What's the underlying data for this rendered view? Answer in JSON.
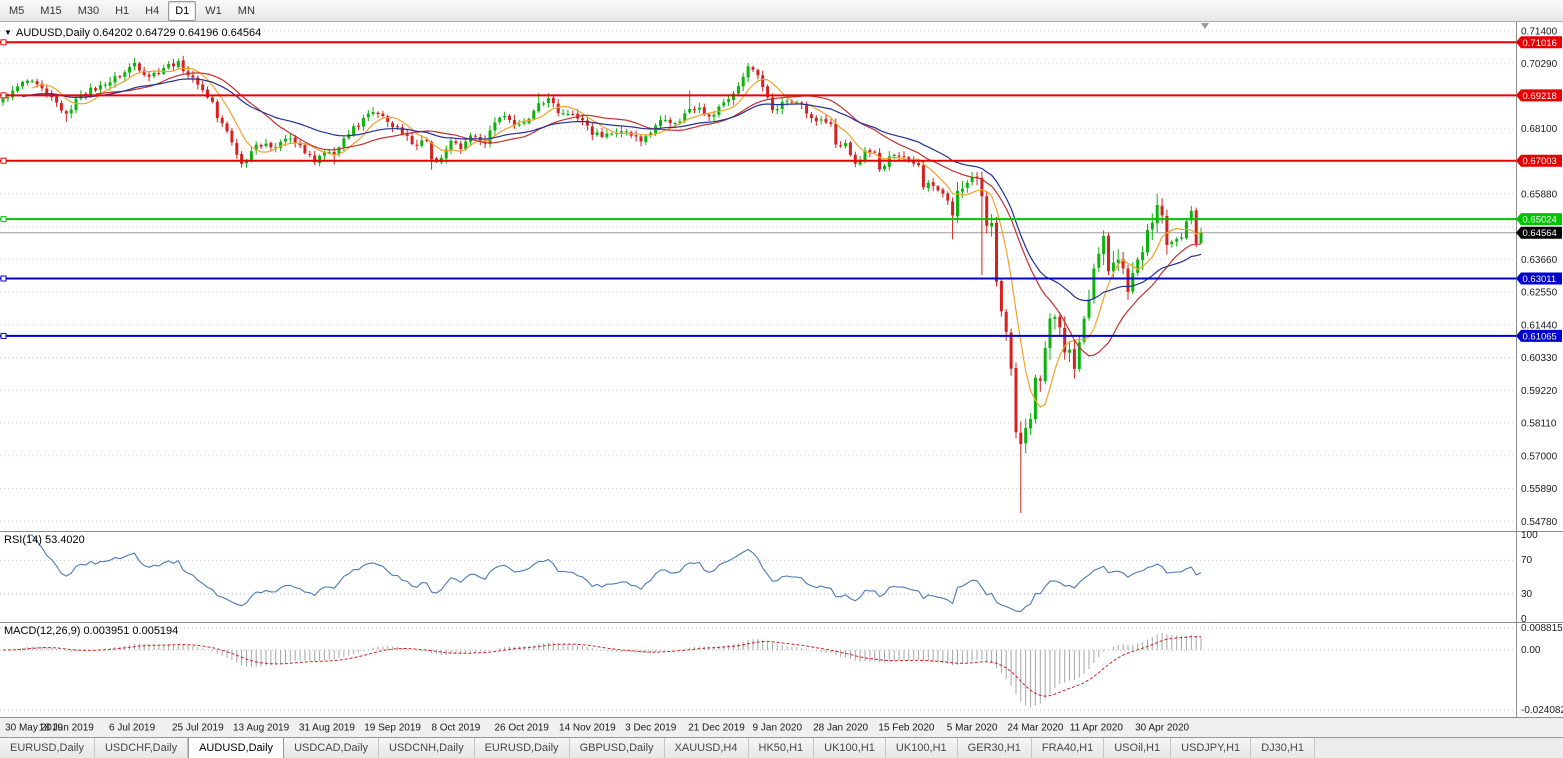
{
  "toolbar": {
    "timeframes": [
      "M5",
      "M15",
      "M30",
      "H1",
      "H4",
      "D1",
      "W1",
      "MN"
    ],
    "active": "D1"
  },
  "colors": {
    "up_candle": "#0db30d",
    "down_candle": "#d62121",
    "grid": "#cdcdcd",
    "current_price_line": "#9a9a9a",
    "rsi_line": "#4a7ab5",
    "macd_bar": "#a6a6a6",
    "macd_signal": "#d02020",
    "level_red": "#e60000",
    "level_green": "#00c400",
    "level_blue": "#0000d0",
    "current_badge": "#000000"
  },
  "chart_data": {
    "type": "candlestick",
    "symbol": "AUDUSD",
    "timeframe": "Daily",
    "header": "AUDUSD,Daily 0.64202 0.64729 0.64196 0.64564",
    "ohlc": {
      "open": "0.64202",
      "high": "0.64729",
      "low": "0.64196",
      "close": "0.64564"
    },
    "n_candles": 247,
    "last_candle": {
      "open": 0.64202,
      "high": 0.64729,
      "low": 0.64196,
      "close": 0.64564
    },
    "close_anchors": [
      [
        0,
        0.691
      ],
      [
        2,
        0.6938
      ],
      [
        5,
        0.6972
      ],
      [
        9,
        0.6928
      ],
      [
        13,
        0.686
      ],
      [
        16,
        0.6925
      ],
      [
        21,
        0.6958
      ],
      [
        25,
        0.7
      ],
      [
        27,
        0.7032
      ],
      [
        30,
        0.6985
      ],
      [
        33,
        0.7015
      ],
      [
        36,
        0.7038
      ],
      [
        38,
        0.699
      ],
      [
        40,
        0.6958
      ],
      [
        43,
        0.69
      ],
      [
        44,
        0.6845
      ],
      [
        46,
        0.68
      ],
      [
        49,
        0.669
      ],
      [
        52,
        0.6755
      ],
      [
        55,
        0.6745
      ],
      [
        58,
        0.6775
      ],
      [
        61,
        0.6752
      ],
      [
        64,
        0.6695
      ],
      [
        66,
        0.673
      ],
      [
        68,
        0.6722
      ],
      [
        71,
        0.679
      ],
      [
        74,
        0.6845
      ],
      [
        76,
        0.6865
      ],
      [
        79,
        0.6832
      ],
      [
        82,
        0.679
      ],
      [
        84,
        0.6757
      ],
      [
        87,
        0.6767
      ],
      [
        88,
        0.6705
      ],
      [
        90,
        0.671
      ],
      [
        92,
        0.6768
      ],
      [
        94,
        0.674
      ],
      [
        96,
        0.6786
      ],
      [
        99,
        0.6758
      ],
      [
        101,
        0.683
      ],
      [
        103,
        0.6852
      ],
      [
        105,
        0.682
      ],
      [
        108,
        0.6842
      ],
      [
        110,
        0.6895
      ],
      [
        112,
        0.6912
      ],
      [
        114,
        0.6862
      ],
      [
        117,
        0.6858
      ],
      [
        119,
        0.6838
      ],
      [
        121,
        0.6788
      ],
      [
        124,
        0.6792
      ],
      [
        127,
        0.68
      ],
      [
        129,
        0.6785
      ],
      [
        131,
        0.6766
      ],
      [
        134,
        0.682
      ],
      [
        136,
        0.6838
      ],
      [
        138,
        0.6828
      ],
      [
        141,
        0.6876
      ],
      [
        143,
        0.688
      ],
      [
        145,
        0.685
      ],
      [
        147,
        0.6884
      ],
      [
        150,
        0.6928
      ],
      [
        152,
        0.6985
      ],
      [
        153,
        0.702
      ],
      [
        155,
        0.699
      ],
      [
        156,
        0.695
      ],
      [
        158,
        0.6872
      ],
      [
        160,
        0.69
      ],
      [
        162,
        0.6898
      ],
      [
        164,
        0.6893
      ],
      [
        166,
        0.6845
      ],
      [
        168,
        0.684
      ],
      [
        170,
        0.6825
      ],
      [
        171,
        0.6755
      ],
      [
        173,
        0.676
      ],
      [
        174,
        0.672
      ],
      [
        175,
        0.669
      ],
      [
        177,
        0.6735
      ],
      [
        179,
        0.673
      ],
      [
        180,
        0.667
      ],
      [
        182,
        0.6715
      ],
      [
        184,
        0.6715
      ],
      [
        186,
        0.67
      ],
      [
        188,
        0.6685
      ],
      [
        189,
        0.661
      ],
      [
        190,
        0.6625
      ],
      [
        192,
        0.66
      ],
      [
        194,
        0.6565
      ],
      [
        195,
        0.6515
      ],
      [
        196,
        0.6598
      ],
      [
        198,
        0.6625
      ],
      [
        200,
        0.664
      ],
      [
        201,
        0.658
      ],
      [
        202,
        0.648
      ],
      [
        203,
        0.649
      ],
      [
        204,
        0.629
      ],
      [
        205,
        0.619
      ],
      [
        206,
        0.612
      ],
      [
        207,
        0.5995
      ],
      [
        208,
        0.578
      ],
      [
        209,
        0.574
      ],
      [
        210,
        0.5795
      ],
      [
        211,
        0.5825
      ],
      [
        212,
        0.5965
      ],
      [
        213,
        0.5955
      ],
      [
        214,
        0.6065
      ],
      [
        215,
        0.6165
      ],
      [
        216,
        0.617
      ],
      [
        217,
        0.6135
      ],
      [
        218,
        0.605
      ],
      [
        219,
        0.606
      ],
      [
        220,
        0.5995
      ],
      [
        221,
        0.6085
      ],
      [
        222,
        0.6165
      ],
      [
        223,
        0.623
      ],
      [
        224,
        0.6335
      ],
      [
        225,
        0.6385
      ],
      [
        226,
        0.6445
      ],
      [
        227,
        0.6325
      ],
      [
        228,
        0.6355
      ],
      [
        229,
        0.6365
      ],
      [
        230,
        0.6335
      ],
      [
        231,
        0.6255
      ],
      [
        232,
        0.632
      ],
      [
        233,
        0.6365
      ],
      [
        234,
        0.639
      ],
      [
        235,
        0.6465
      ],
      [
        236,
        0.649
      ],
      [
        237,
        0.655
      ],
      [
        238,
        0.6515
      ],
      [
        239,
        0.6415
      ],
      [
        240,
        0.6425
      ],
      [
        241,
        0.6435
      ],
      [
        242,
        0.644
      ],
      [
        243,
        0.6495
      ],
      [
        244,
        0.653
      ],
      [
        245,
        0.642
      ],
      [
        246,
        0.64564
      ]
    ],
    "wick_low_overrides": [
      [
        13,
        0.6832
      ],
      [
        49,
        0.6677
      ],
      [
        64,
        0.6686
      ],
      [
        68,
        0.6688
      ],
      [
        88,
        0.667
      ],
      [
        195,
        0.6434
      ],
      [
        201,
        0.6313
      ],
      [
        209,
        0.5506
      ]
    ],
    "wick_high_overrides": [
      [
        27,
        0.7048
      ],
      [
        36,
        0.7045
      ],
      [
        110,
        0.6929
      ],
      [
        141,
        0.6939
      ]
    ],
    "overlays": [
      {
        "name": "ma-fast",
        "type": "sma",
        "period": 7,
        "color": "#efa42c"
      },
      {
        "name": "ma-mid",
        "type": "sma",
        "period": 20,
        "color": "#c43131"
      },
      {
        "name": "ma-slow",
        "type": "ema",
        "period": 32,
        "color": "#232f94"
      }
    ],
    "horizontal_levels": [
      {
        "value": 0.71016,
        "label": "0.71016",
        "color": "#e60000"
      },
      {
        "value": 0.69218,
        "label": "0.69218",
        "color": "#e60000"
      },
      {
        "value": 0.67003,
        "label": "0.67003",
        "color": "#e60000"
      },
      {
        "value": 0.65024,
        "label": "0.65024",
        "color": "#00c400"
      },
      {
        "value": 0.63011,
        "label": "0.63011",
        "color": "#0000d0"
      },
      {
        "value": 0.61065,
        "label": "0.61065",
        "color": "#0000d0"
      }
    ],
    "current_price": {
      "value": 0.64564,
      "label": "0.64564"
    },
    "y_axis": {
      "gridlines": [
        {
          "v": 0.714,
          "t": "0.71400"
        },
        {
          "v": 0.7029,
          "t": "0.70290"
        },
        {
          "v": 0.69195,
          "t": ""
        },
        {
          "v": 0.681,
          "t": "0.68100"
        },
        {
          "v": 0.6699,
          "t": ""
        },
        {
          "v": 0.6588,
          "t": "0.65880"
        },
        {
          "v": 0.6477,
          "t": ""
        },
        {
          "v": 0.6366,
          "t": "0.63660"
        },
        {
          "v": 0.6255,
          "t": "0.62550"
        },
        {
          "v": 0.6144,
          "t": "0.61440"
        },
        {
          "v": 0.6033,
          "t": "0.60330"
        },
        {
          "v": 0.5922,
          "t": "0.59220"
        },
        {
          "v": 0.5811,
          "t": "0.58110"
        },
        {
          "v": 0.57,
          "t": "0.57000"
        },
        {
          "v": 0.5589,
          "t": "0.55890"
        },
        {
          "v": 0.5478,
          "t": "0.54780"
        }
      ],
      "visible_range": [
        0.5444,
        0.7171
      ]
    },
    "x_labels": [
      {
        "day": 0,
        "text": "30 May 2019"
      },
      {
        "day": 13,
        "text": "18 Jun 2019"
      },
      {
        "day": 26.5,
        "text": "6 Jul 2019"
      },
      {
        "day": 40,
        "text": "25 Jul 2019"
      },
      {
        "day": 53,
        "text": "13 Aug 2019"
      },
      {
        "day": 66.5,
        "text": "31 Aug 2019"
      },
      {
        "day": 80,
        "text": "19 Sep 2019"
      },
      {
        "day": 93,
        "text": "8 Oct 2019"
      },
      {
        "day": 106.5,
        "text": "26 Oct 2019"
      },
      {
        "day": 120,
        "text": "14 Nov 2019"
      },
      {
        "day": 133,
        "text": "3 Dec 2019"
      },
      {
        "day": 146.5,
        "text": "21 Dec 2019"
      },
      {
        "day": 159,
        "text": "9 Jan 2020"
      },
      {
        "day": 172,
        "text": "28 Jan 2020"
      },
      {
        "day": 185.5,
        "text": "15 Feb 2020"
      },
      {
        "day": 199,
        "text": "5 Mar 2020"
      },
      {
        "day": 212,
        "text": "24 Mar 2020"
      },
      {
        "day": 224.5,
        "text": "11 Apr 2020"
      },
      {
        "day": 238,
        "text": "30 Apr 2020"
      }
    ],
    "indicators": [
      {
        "name": "RSI",
        "params": "14",
        "display": "RSI(14) 53.4020",
        "current": "53.4020",
        "axis_labels": [
          {
            "v": 100,
            "t": "100"
          },
          {
            "v": 70,
            "t": "70"
          },
          {
            "v": 30,
            "t": "30"
          },
          {
            "v": 0,
            "t": "0"
          }
        ],
        "dotted_levels": [
          70,
          30
        ],
        "line_color": "#4a7ab5"
      },
      {
        "name": "MACD",
        "params": "12,26,9",
        "display": "MACD(12,26,9) 0.003951 0.005194",
        "current_main": "0.003951",
        "current_signal": "0.005194",
        "axis_labels": [
          {
            "v": 0.008815,
            "t": "0.008815"
          },
          {
            "v": 0,
            "t": "0.00"
          },
          {
            "v": -0.024082,
            "t": "-0.024082"
          }
        ]
      }
    ]
  },
  "tab_bar": {
    "active_index": 2,
    "tabs": [
      {
        "label": "EURUSD,Daily"
      },
      {
        "label": "USDCHF,Daily"
      },
      {
        "label": "AUDUSD,Daily"
      },
      {
        "label": "USDCAD,Daily"
      },
      {
        "label": "USDCNH,Daily"
      },
      {
        "label": "EURUSD,Daily"
      },
      {
        "label": "GBPUSD,Daily"
      },
      {
        "label": "XAUUSD,H4"
      },
      {
        "label": "HK50,H1"
      },
      {
        "label": "UK100,H1"
      },
      {
        "label": "UK100,H1"
      },
      {
        "label": "GER30,H1"
      },
      {
        "label": "FRA40,H1"
      },
      {
        "label": "USOil,H1"
      },
      {
        "label": "USDJPY,H1"
      },
      {
        "label": "DJ30,H1"
      }
    ]
  }
}
